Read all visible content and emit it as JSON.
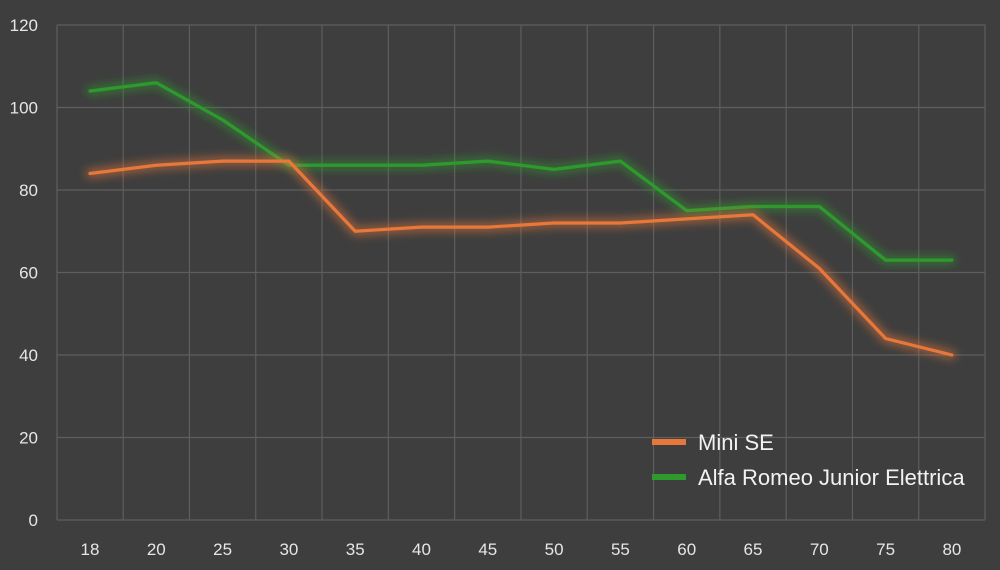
{
  "chart_data": {
    "type": "line",
    "title": "",
    "xlabel": "",
    "ylabel": "",
    "x": [
      "18",
      "20",
      "25",
      "30",
      "35",
      "40",
      "45",
      "50",
      "55",
      "60",
      "65",
      "70",
      "75",
      "80"
    ],
    "yticks": [
      "0",
      "20",
      "40",
      "60",
      "80",
      "100",
      "120"
    ],
    "ylim": [
      0,
      120
    ],
    "grid": true,
    "legend_position": "bottom-right",
    "series": [
      {
        "name": "Mini SE",
        "color": "#e8773a",
        "values": [
          84,
          86,
          87,
          87,
          70,
          71,
          71,
          72,
          72,
          73,
          74,
          61,
          44,
          40
        ]
      },
      {
        "name": "Alfa Romeo Junior Elettrica",
        "color": "#2e9a2e",
        "values": [
          104,
          106,
          97,
          86,
          86,
          86,
          87,
          85,
          87,
          75,
          76,
          76,
          63,
          63
        ]
      }
    ]
  }
}
